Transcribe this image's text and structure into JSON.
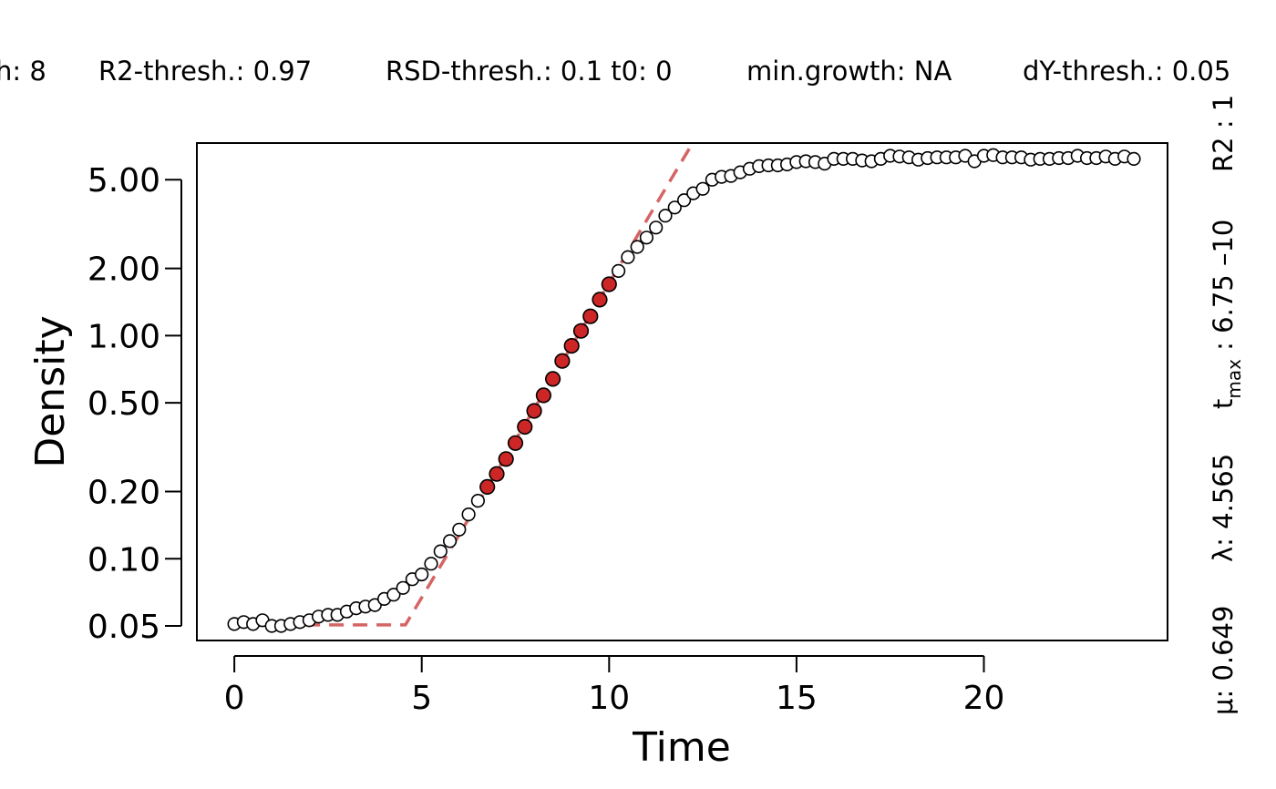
{
  "chart_data": {
    "type": "scatter",
    "xlabel": "Time",
    "ylabel": "Density",
    "y_scale": "log",
    "xlim": [
      -1,
      24.9
    ],
    "ylim": [
      0.043,
      7.3
    ],
    "x_ticks": [
      0,
      5,
      10,
      15,
      20
    ],
    "x_tick_labels": [
      "0",
      "5",
      "10",
      "15",
      "20"
    ],
    "y_ticks": [
      0.05,
      0.1,
      0.2,
      0.5,
      1,
      2,
      5
    ],
    "y_tick_labels": [
      "0.05",
      "0.10",
      "0.20",
      "0.50",
      "1.00",
      "2.00",
      "5.00"
    ],
    "grid": false,
    "header_items": [
      "h: 8",
      "R2-thresh.: 0.97",
      "RSD-thresh.: 0.1 t0: 0",
      "min.growth: NA",
      "dY-thresh.: 0.05"
    ],
    "side_annotation": {
      "mu_label": "μ: 0.649",
      "lambda_label": "λ: 4.565",
      "tmax_prefix": "t",
      "tmax_sub": "max",
      "tmax_value": " : 6.75 –10",
      "r2_label": "R2 : 1"
    },
    "points": [
      [
        0,
        0.051
      ],
      [
        0.25,
        0.052
      ],
      [
        0.5,
        0.051
      ],
      [
        0.75,
        0.053
      ],
      [
        1,
        0.05
      ],
      [
        1.25,
        0.05
      ],
      [
        1.5,
        0.051
      ],
      [
        1.75,
        0.052
      ],
      [
        2,
        0.053
      ],
      [
        2.25,
        0.055
      ],
      [
        2.5,
        0.056
      ],
      [
        2.75,
        0.056
      ],
      [
        3,
        0.058
      ],
      [
        3.25,
        0.06
      ],
      [
        3.5,
        0.061
      ],
      [
        3.75,
        0.062
      ],
      [
        4,
        0.066
      ],
      [
        4.25,
        0.069
      ],
      [
        4.5,
        0.074
      ],
      [
        4.75,
        0.081
      ],
      [
        5,
        0.085
      ],
      [
        5.25,
        0.095
      ],
      [
        5.5,
        0.108
      ],
      [
        5.75,
        0.12
      ],
      [
        6,
        0.135
      ],
      [
        6.25,
        0.158
      ],
      [
        6.5,
        0.182
      ],
      [
        6.75,
        0.21
      ],
      [
        7,
        0.24
      ],
      [
        7.25,
        0.28
      ],
      [
        7.5,
        0.33
      ],
      [
        7.75,
        0.39
      ],
      [
        8,
        0.46
      ],
      [
        8.25,
        0.54
      ],
      [
        8.5,
        0.64
      ],
      [
        8.75,
        0.77
      ],
      [
        9,
        0.9
      ],
      [
        9.25,
        1.05
      ],
      [
        9.5,
        1.22
      ],
      [
        9.75,
        1.45
      ],
      [
        10,
        1.7
      ],
      [
        10.25,
        1.95
      ],
      [
        10.5,
        2.25
      ],
      [
        10.75,
        2.5
      ],
      [
        11,
        2.75
      ],
      [
        11.25,
        3.05
      ],
      [
        11.5,
        3.45
      ],
      [
        11.75,
        3.75
      ],
      [
        12,
        4.05
      ],
      [
        12.25,
        4.35
      ],
      [
        12.5,
        4.55
      ],
      [
        12.75,
        5.0
      ],
      [
        13,
        5.15
      ],
      [
        13.25,
        5.2
      ],
      [
        13.5,
        5.4
      ],
      [
        13.75,
        5.6
      ],
      [
        14,
        5.75
      ],
      [
        14.25,
        5.8
      ],
      [
        14.5,
        5.8
      ],
      [
        14.75,
        5.85
      ],
      [
        15,
        6.0
      ],
      [
        15.25,
        6.05
      ],
      [
        15.5,
        6.0
      ],
      [
        15.75,
        5.9
      ],
      [
        16,
        6.2
      ],
      [
        16.25,
        6.2
      ],
      [
        16.5,
        6.2
      ],
      [
        16.75,
        6.1
      ],
      [
        17,
        6.05
      ],
      [
        17.25,
        6.2
      ],
      [
        17.5,
        6.4
      ],
      [
        17.75,
        6.35
      ],
      [
        18,
        6.3
      ],
      [
        18.25,
        6.15
      ],
      [
        18.5,
        6.25
      ],
      [
        18.75,
        6.3
      ],
      [
        19,
        6.3
      ],
      [
        19.25,
        6.3
      ],
      [
        19.5,
        6.4
      ],
      [
        19.75,
        6.05
      ],
      [
        20,
        6.4
      ],
      [
        20.25,
        6.45
      ],
      [
        20.5,
        6.3
      ],
      [
        20.75,
        6.3
      ],
      [
        21,
        6.3
      ],
      [
        21.25,
        6.15
      ],
      [
        21.5,
        6.2
      ],
      [
        21.75,
        6.2
      ],
      [
        22,
        6.25
      ],
      [
        22.25,
        6.25
      ],
      [
        22.5,
        6.4
      ],
      [
        22.75,
        6.25
      ],
      [
        23,
        6.25
      ],
      [
        23.25,
        6.35
      ],
      [
        23.5,
        6.2
      ],
      [
        23.75,
        6.35
      ],
      [
        24,
        6.2
      ]
    ],
    "highlighted_range": [
      6.75,
      10
    ],
    "fit_line": {
      "style": "dashed",
      "color": "#D56565",
      "lag_level": 0.0505,
      "lambda": 4.565,
      "mu": 0.649,
      "x_end": 12.6
    }
  },
  "colors": {
    "highlight_fill": "#CD2626",
    "open_fill": "#ffffff",
    "outline": "#000000",
    "fit_line": "#D56565"
  }
}
